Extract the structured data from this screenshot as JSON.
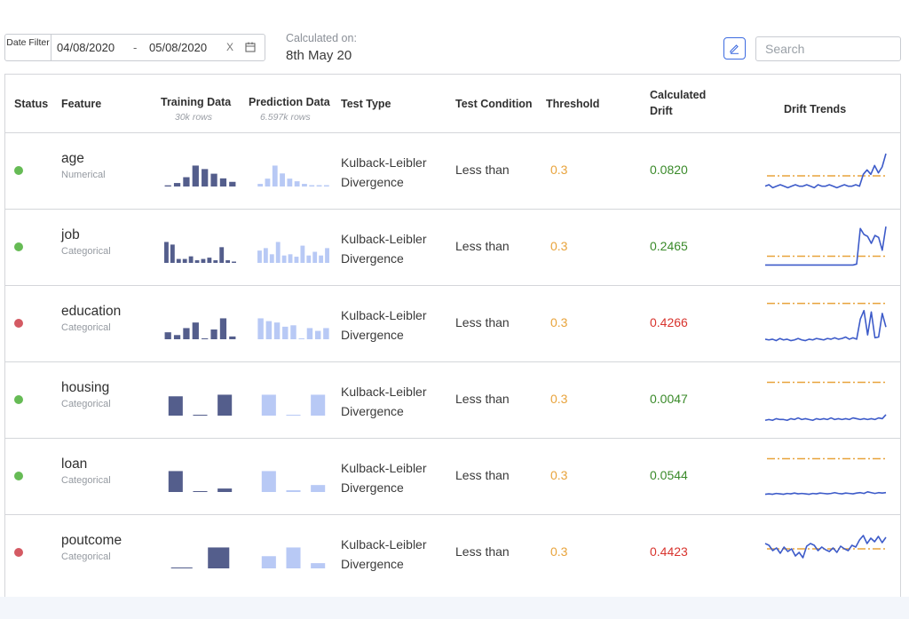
{
  "colors": {
    "training_bar": "#545e8c",
    "prediction_bar": "#b8c9f5",
    "trend_line": "#3d5bc9",
    "threshold_line": "#e8a33b",
    "status_ok": "#66bb55",
    "status_bad": "#d45a63",
    "drift_ok": "#3a8a2a",
    "drift_bad": "#d8342e",
    "threshold_text": "#e8a33b"
  },
  "toolbar": {
    "date_filter_label": "Date Filter",
    "date_from": "04/08/2020",
    "date_separator": "-",
    "date_to": "05/08/2020",
    "clear_label": "X",
    "calendar_icon": "calendar-icon",
    "calculated_label": "Calculated on:",
    "calculated_value": "8th May 20",
    "edit_icon": "pencil-icon",
    "search_placeholder": "Search"
  },
  "table": {
    "headers": {
      "status": "Status",
      "feature": "Feature",
      "training": "Training Data",
      "training_sub": "30k rows",
      "prediction": "Prediction Data",
      "prediction_sub": "6.597k rows",
      "test_type": "Test Type",
      "test_condition": "Test Condition",
      "threshold": "Threshold",
      "calc_drift_line1": "Calculated",
      "calc_drift_line2": "Drift",
      "drift_trends": "Drift Trends"
    },
    "rows": [
      {
        "status": "ok",
        "name": "age",
        "type": "Numerical",
        "training_hist": [
          1,
          3,
          8,
          18,
          15,
          11,
          7,
          4
        ],
        "prediction_hist": [
          2,
          6,
          16,
          10,
          6,
          4,
          2,
          1,
          1,
          1
        ],
        "test_type_line1": "Kulback-Leibler",
        "test_type_line2": "Divergence",
        "test_condition": "Less than",
        "threshold": "0.3",
        "drift": "0.0820",
        "drift_status": "ok",
        "trend_values": [
          0.05,
          0.06,
          0.04,
          0.05,
          0.06,
          0.05,
          0.04,
          0.05,
          0.06,
          0.05,
          0.05,
          0.06,
          0.05,
          0.04,
          0.06,
          0.05,
          0.05,
          0.06,
          0.05,
          0.04,
          0.05,
          0.06,
          0.05,
          0.05,
          0.06,
          0.05,
          0.13,
          0.16,
          0.13,
          0.19,
          0.14,
          0.18,
          0.27
        ],
        "trend_threshold": 0.12,
        "trend_max": 0.3
      },
      {
        "status": "ok",
        "name": "job",
        "type": "Categorical",
        "training_hist": [
          16,
          14,
          3,
          3,
          5,
          2,
          3,
          4,
          2,
          12,
          2,
          1
        ],
        "prediction_hist": [
          10,
          12,
          7,
          17,
          6,
          7,
          5,
          14,
          6,
          9,
          6,
          12
        ],
        "test_type_line1": "Kulback-Leibler",
        "test_type_line2": "Divergence",
        "test_condition": "Less than",
        "threshold": "0.3",
        "drift": "0.2465",
        "drift_status": "ok",
        "trend_values": [
          0.05,
          0.05,
          0.05,
          0.05,
          0.05,
          0.05,
          0.05,
          0.05,
          0.05,
          0.05,
          0.05,
          0.05,
          0.05,
          0.05,
          0.05,
          0.05,
          0.05,
          0.05,
          0.05,
          0.05,
          0.05,
          0.05,
          0.05,
          0.05,
          0.05,
          0.06,
          0.42,
          0.36,
          0.34,
          0.27,
          0.35,
          0.33,
          0.2,
          0.44
        ],
        "trend_threshold": 0.14,
        "trend_max": 0.45
      },
      {
        "status": "bad",
        "name": "education",
        "type": "Categorical",
        "training_hist": [
          5,
          3,
          8,
          12,
          0,
          7,
          15,
          2
        ],
        "prediction_hist": [
          15,
          13,
          12,
          9,
          10,
          0,
          8,
          6,
          8
        ],
        "test_type_line1": "Kulback-Leibler",
        "test_type_line2": "Divergence",
        "test_condition": "Less than",
        "threshold": "0.3",
        "drift": "0.4266",
        "drift_status": "bad",
        "trend_values": [
          0.1,
          0.09,
          0.1,
          0.08,
          0.11,
          0.09,
          0.1,
          0.08,
          0.09,
          0.11,
          0.09,
          0.08,
          0.1,
          0.09,
          0.11,
          0.1,
          0.09,
          0.11,
          0.1,
          0.12,
          0.1,
          0.11,
          0.13,
          0.1,
          0.12,
          0.1,
          0.38,
          0.5,
          0.16,
          0.48,
          0.12,
          0.13,
          0.46,
          0.27
        ],
        "trend_threshold": 0.6,
        "trend_max": 0.62
      },
      {
        "status": "ok",
        "name": "housing",
        "type": "Categorical",
        "training_hist": [
          12,
          0.4,
          13
        ],
        "prediction_hist": [
          12,
          0.4,
          12
        ],
        "test_type_line1": "Kulback-Leibler",
        "test_type_line2": "Divergence",
        "test_condition": "Less than",
        "threshold": "0.3",
        "drift": "0.0047",
        "drift_status": "ok",
        "trend_values": [
          0.003,
          0.004,
          0.003,
          0.005,
          0.004,
          0.004,
          0.003,
          0.005,
          0.004,
          0.006,
          0.004,
          0.005,
          0.004,
          0.003,
          0.005,
          0.004,
          0.005,
          0.004,
          0.006,
          0.004,
          0.005,
          0.004,
          0.005,
          0.004,
          0.006,
          0.005,
          0.004,
          0.005,
          0.004,
          0.005,
          0.004,
          0.006,
          0.005,
          0.01
        ],
        "trend_threshold": 0.05,
        "trend_max": 0.055
      },
      {
        "status": "ok",
        "name": "loan",
        "type": "Categorical",
        "training_hist": [
          12,
          0.4,
          2
        ],
        "prediction_hist": [
          12,
          1,
          4
        ],
        "test_type_line1": "Kulback-Leibler",
        "test_type_line2": "Divergence",
        "test_condition": "Less than",
        "threshold": "0.3",
        "drift": "0.0544",
        "drift_status": "ok",
        "trend_values": [
          0.012,
          0.013,
          0.012,
          0.014,
          0.013,
          0.012,
          0.014,
          0.013,
          0.015,
          0.013,
          0.014,
          0.013,
          0.012,
          0.014,
          0.013,
          0.015,
          0.014,
          0.013,
          0.014,
          0.016,
          0.014,
          0.013,
          0.015,
          0.014,
          0.013,
          0.015,
          0.016,
          0.014,
          0.018,
          0.016,
          0.014,
          0.016,
          0.015,
          0.016
        ],
        "trend_threshold": 0.1,
        "trend_max": 0.11
      },
      {
        "status": "bad",
        "name": "poutcome",
        "type": "Categorical",
        "training_hist": [
          0.3,
          13
        ],
        "prediction_hist": [
          7,
          12,
          3
        ],
        "test_type_line1": "Kulback-Leibler",
        "test_type_line2": "Divergence",
        "test_condition": "Less than",
        "threshold": "0.3",
        "drift": "0.4423",
        "drift_status": "bad",
        "trend_values": [
          0.36,
          0.34,
          0.28,
          0.31,
          0.25,
          0.32,
          0.27,
          0.3,
          0.22,
          0.26,
          0.2,
          0.33,
          0.36,
          0.34,
          0.28,
          0.32,
          0.29,
          0.27,
          0.31,
          0.26,
          0.33,
          0.3,
          0.28,
          0.34,
          0.32,
          0.4,
          0.45,
          0.36,
          0.42,
          0.38,
          0.44,
          0.37,
          0.43
        ],
        "trend_threshold": 0.3,
        "trend_max": 0.5
      }
    ]
  }
}
